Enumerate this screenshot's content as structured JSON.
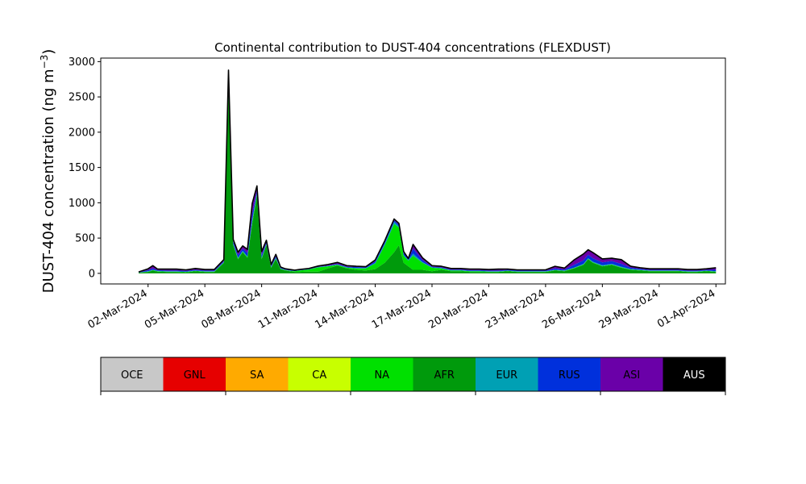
{
  "chart_data": {
    "type": "area",
    "stacked": true,
    "title": "Continental contribution to DUST-404 concentrations (FLEXDUST)",
    "ylabel_main": "DUST-404 concentration (ng m",
    "ylabel_sup": "−3",
    "ylabel_close": ")",
    "ylim": [
      -150,
      3050
    ],
    "yticks": [
      0,
      500,
      1000,
      1500,
      2000,
      2500,
      3000
    ],
    "ytick_labels": [
      "0",
      "500",
      "1000",
      "1500",
      "2000",
      "2500",
      "3000"
    ],
    "xlim": [
      "2024-02-28T12:00",
      "2024-04-01T12:00"
    ],
    "xticks": [
      "2024-03-02",
      "2024-03-05",
      "2024-03-08",
      "2024-03-11",
      "2024-03-14",
      "2024-03-17",
      "2024-03-20",
      "2024-03-23",
      "2024-03-26",
      "2024-03-29",
      "2024-04-01"
    ],
    "xtick_labels": [
      "02-Mar-2024",
      "05-Mar-2024",
      "08-Mar-2024",
      "11-Mar-2024",
      "14-Mar-2024",
      "17-Mar-2024",
      "20-Mar-2024",
      "23-Mar-2024",
      "26-Mar-2024",
      "29-Mar-2024",
      "01-Apr-2024"
    ],
    "x": [
      "2024-03-01T12:00",
      "2024-03-02T00:00",
      "2024-03-02T06:00",
      "2024-03-02T12:00",
      "2024-03-03T00:00",
      "2024-03-03T12:00",
      "2024-03-04T00:00",
      "2024-03-04T12:00",
      "2024-03-05T00:00",
      "2024-03-05T12:00",
      "2024-03-06T00:00",
      "2024-03-06T06:00",
      "2024-03-06T12:00",
      "2024-03-06T18:00",
      "2024-03-07T00:00",
      "2024-03-07T06:00",
      "2024-03-07T12:00",
      "2024-03-07T18:00",
      "2024-03-08T00:00",
      "2024-03-08T06:00",
      "2024-03-08T12:00",
      "2024-03-08T18:00",
      "2024-03-09T00:00",
      "2024-03-09T06:00",
      "2024-03-09T12:00",
      "2024-03-09T18:00",
      "2024-03-10T00:00",
      "2024-03-10T12:00",
      "2024-03-11T00:00",
      "2024-03-11T12:00",
      "2024-03-12T00:00",
      "2024-03-12T12:00",
      "2024-03-13T00:00",
      "2024-03-13T12:00",
      "2024-03-14T00:00",
      "2024-03-14T12:00",
      "2024-03-15T00:00",
      "2024-03-15T06:00",
      "2024-03-15T12:00",
      "2024-03-15T18:00",
      "2024-03-16T00:00",
      "2024-03-16T12:00",
      "2024-03-17T00:00",
      "2024-03-17T12:00",
      "2024-03-18T00:00",
      "2024-03-18T12:00",
      "2024-03-19T00:00",
      "2024-03-19T12:00",
      "2024-03-20T00:00",
      "2024-03-20T12:00",
      "2024-03-21T00:00",
      "2024-03-21T12:00",
      "2024-03-22T00:00",
      "2024-03-22T12:00",
      "2024-03-23T00:00",
      "2024-03-23T12:00",
      "2024-03-24T00:00",
      "2024-03-24T12:00",
      "2024-03-25T00:00",
      "2024-03-25T06:00",
      "2024-03-25T12:00",
      "2024-03-26T00:00",
      "2024-03-26T12:00",
      "2024-03-27T00:00",
      "2024-03-27T12:00",
      "2024-03-28T00:00",
      "2024-03-28T12:00",
      "2024-03-29T00:00",
      "2024-03-29T12:00",
      "2024-03-30T00:00",
      "2024-03-30T12:00",
      "2024-03-31T00:00",
      "2024-03-31T12:00",
      "2024-04-01T00:00"
    ],
    "series": [
      {
        "name": "AFR",
        "color": "#009a0c",
        "values": [
          10,
          20,
          40,
          25,
          20,
          20,
          15,
          30,
          20,
          20,
          150,
          2600,
          400,
          200,
          300,
          220,
          700,
          1100,
          200,
          400,
          80,
          200,
          60,
          40,
          30,
          20,
          20,
          25,
          25,
          70,
          110,
          70,
          50,
          40,
          60,
          150,
          300,
          400,
          150,
          100,
          50,
          50,
          30,
          50,
          30,
          30,
          20,
          20,
          20,
          20,
          30,
          20,
          20,
          20,
          20,
          40,
          30,
          70,
          120,
          200,
          150,
          100,
          120,
          80,
          50,
          40,
          30,
          30,
          30,
          30,
          20,
          20,
          30,
          20
        ]
      },
      {
        "name": "NA",
        "color": "#00e000",
        "values": [
          0,
          5,
          5,
          5,
          5,
          5,
          5,
          5,
          5,
          5,
          5,
          20,
          10,
          10,
          10,
          10,
          30,
          20,
          10,
          10,
          5,
          10,
          5,
          5,
          5,
          10,
          20,
          30,
          60,
          30,
          10,
          10,
          20,
          30,
          80,
          250,
          400,
          250,
          100,
          80,
          200,
          100,
          50,
          20,
          10,
          10,
          10,
          10,
          5,
          5,
          5,
          5,
          5,
          5,
          5,
          5,
          5,
          5,
          5,
          5,
          5,
          5,
          5,
          5,
          5,
          5,
          5,
          5,
          5,
          5,
          5,
          5,
          5,
          5
        ]
      },
      {
        "name": "EUR",
        "color": "#00a0b4",
        "values": [
          2,
          5,
          5,
          5,
          5,
          5,
          5,
          5,
          5,
          5,
          5,
          20,
          10,
          10,
          10,
          10,
          20,
          20,
          10,
          10,
          5,
          10,
          5,
          5,
          5,
          5,
          5,
          5,
          5,
          5,
          5,
          5,
          5,
          5,
          10,
          20,
          30,
          20,
          10,
          10,
          30,
          10,
          5,
          5,
          5,
          5,
          5,
          5,
          5,
          5,
          5,
          5,
          5,
          5,
          5,
          5,
          5,
          5,
          10,
          10,
          10,
          10,
          10,
          10,
          5,
          5,
          5,
          5,
          5,
          5,
          5,
          5,
          5,
          5
        ]
      },
      {
        "name": "RUS",
        "color": "#0030dc",
        "values": [
          3,
          15,
          20,
          10,
          10,
          10,
          10,
          10,
          10,
          10,
          15,
          120,
          30,
          40,
          30,
          50,
          90,
          40,
          40,
          20,
          15,
          20,
          10,
          5,
          5,
          5,
          5,
          5,
          5,
          5,
          10,
          10,
          15,
          10,
          20,
          20,
          20,
          20,
          30,
          10,
          70,
          30,
          10,
          10,
          10,
          10,
          10,
          10,
          10,
          10,
          10,
          10,
          10,
          10,
          10,
          20,
          15,
          40,
          50,
          50,
          50,
          40,
          40,
          40,
          20,
          15,
          10,
          10,
          10,
          10,
          10,
          10,
          10,
          20
        ]
      },
      {
        "name": "ASI",
        "color": "#6a00a8",
        "values": [
          5,
          20,
          40,
          15,
          20,
          20,
          15,
          20,
          15,
          15,
          20,
          120,
          30,
          40,
          40,
          50,
          150,
          60,
          50,
          30,
          20,
          30,
          10,
          10,
          10,
          5,
          5,
          5,
          10,
          15,
          20,
          15,
          10,
          10,
          20,
          20,
          20,
          20,
          20,
          10,
          60,
          30,
          15,
          15,
          15,
          15,
          15,
          15,
          15,
          20,
          10,
          10,
          10,
          10,
          10,
          30,
          20,
          70,
          90,
          70,
          80,
          50,
          40,
          60,
          20,
          15,
          15,
          15,
          15,
          15,
          15,
          15,
          15,
          30
        ]
      },
      {
        "name": "AUS",
        "color": "#000000",
        "values": [
          0,
          0,
          0,
          0,
          0,
          0,
          0,
          0,
          0,
          0,
          0,
          0,
          0,
          0,
          0,
          0,
          0,
          0,
          0,
          0,
          0,
          0,
          0,
          0,
          0,
          0,
          0,
          0,
          0,
          0,
          0,
          0,
          0,
          0,
          0,
          0,
          0,
          0,
          0,
          0,
          0,
          0,
          0,
          0,
          0,
          0,
          0,
          0,
          0,
          0,
          0,
          0,
          0,
          0,
          0,
          0,
          0,
          0,
          0,
          0,
          0,
          0,
          0,
          0,
          0,
          0,
          0,
          0,
          0,
          0,
          0,
          0,
          0,
          0
        ]
      }
    ],
    "legend": [
      {
        "label": "OCE",
        "color": "#c8c8c8",
        "text_color": "#000000"
      },
      {
        "label": "GNL",
        "color": "#e60000",
        "text_color": "#000000"
      },
      {
        "label": "SA",
        "color": "#ffaa00",
        "text_color": "#000000"
      },
      {
        "label": "CA",
        "color": "#c8ff00",
        "text_color": "#000000"
      },
      {
        "label": "NA",
        "color": "#00e000",
        "text_color": "#000000"
      },
      {
        "label": "AFR",
        "color": "#009a0c",
        "text_color": "#000000"
      },
      {
        "label": "EUR",
        "color": "#00a0b4",
        "text_color": "#000000"
      },
      {
        "label": "RUS",
        "color": "#0030dc",
        "text_color": "#000000"
      },
      {
        "label": "ASI",
        "color": "#6a00a8",
        "text_color": "#000000"
      },
      {
        "label": "AUS",
        "color": "#000000",
        "text_color": "#ffffff"
      }
    ],
    "legend_placement": "below",
    "grid": false
  }
}
